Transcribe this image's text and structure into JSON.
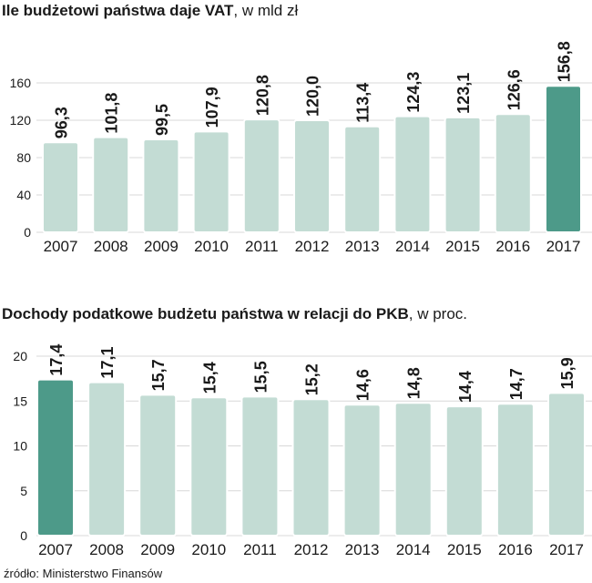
{
  "colors": {
    "bar": "#c3dcd4",
    "bar_highlight": "#4d9a89",
    "bar_outline": "#ffffff",
    "grid": "#d8d8d8",
    "text": "#1a1a1a"
  },
  "chart_data": [
    {
      "type": "bar",
      "title": "Ile budżetowi państwa daje VAT",
      "unit": ", w mld zł",
      "categories": [
        "2007",
        "2008",
        "2009",
        "2010",
        "2011",
        "2012",
        "2013",
        "2014",
        "2015",
        "2016",
        "2017"
      ],
      "values": [
        96.3,
        101.8,
        99.5,
        107.9,
        120.8,
        120.0,
        113.4,
        124.3,
        123.1,
        126.6,
        156.8
      ],
      "value_labels": [
        "96,3",
        "101,8",
        "99,5",
        "107,9",
        "120,8",
        "120,0",
        "113,4",
        "124,3",
        "123,1",
        "126,6",
        "156,8"
      ],
      "highlight_index": 10,
      "yticks": [
        "0",
        "40",
        "80",
        "120",
        "160"
      ],
      "ytick_values": [
        0,
        40,
        80,
        120,
        160
      ],
      "ylim": [
        0,
        160
      ],
      "xlabel": "",
      "ylabel": "",
      "grid": true
    },
    {
      "type": "bar",
      "title": "Dochody podatkowe budżetu państwa w relacji do PKB",
      "unit": ", w proc.",
      "categories": [
        "2007",
        "2008",
        "2009",
        "2010",
        "2011",
        "2012",
        "2013",
        "2014",
        "2015",
        "2016",
        "2017"
      ],
      "values": [
        17.4,
        17.1,
        15.7,
        15.4,
        15.5,
        15.2,
        14.6,
        14.8,
        14.4,
        14.7,
        15.9
      ],
      "value_labels": [
        "17,4",
        "17,1",
        "15,7",
        "15,4",
        "15,5",
        "15,2",
        "14,6",
        "14,8",
        "14,4",
        "14,7",
        "15,9"
      ],
      "highlight_index": 0,
      "yticks": [
        "0",
        "5",
        "10",
        "15",
        "20"
      ],
      "ytick_values": [
        0,
        5,
        10,
        15,
        20
      ],
      "ylim": [
        0,
        20
      ],
      "xlabel": "",
      "ylabel": "",
      "grid": true
    }
  ],
  "source": "źródło: Ministerstwo Finansów"
}
